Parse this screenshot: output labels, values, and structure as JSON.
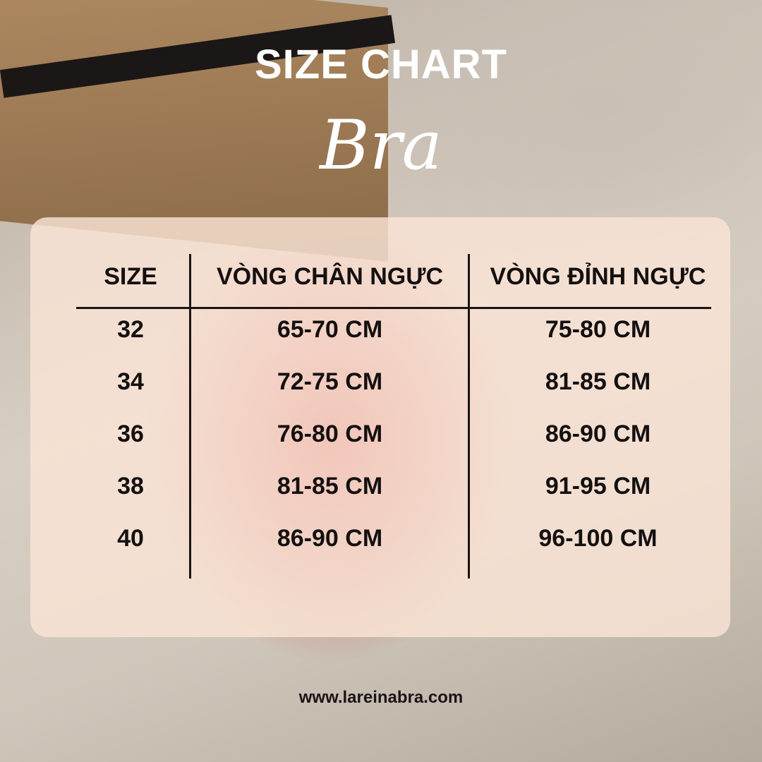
{
  "title": "SIZE CHART",
  "subtitle": "Bra",
  "table": {
    "headers": [
      "SIZE",
      "VÒNG CHÂN NGỰC",
      "VÒNG ĐỈNH NGỰC"
    ],
    "rows": [
      [
        "32",
        "65-70 CM",
        "75-80 CM"
      ],
      [
        "34",
        "72-75 CM",
        "81-85 CM"
      ],
      [
        "36",
        "76-80 CM",
        "86-90 CM"
      ],
      [
        "38",
        "81-85 CM",
        "91-95 CM"
      ],
      [
        "40",
        "86-90 CM",
        "96-100 CM"
      ]
    ]
  },
  "footer": "www.lareinabra.com",
  "colors": {
    "title": "#ffffff",
    "text": "#141010",
    "card": "#fae4d6"
  }
}
